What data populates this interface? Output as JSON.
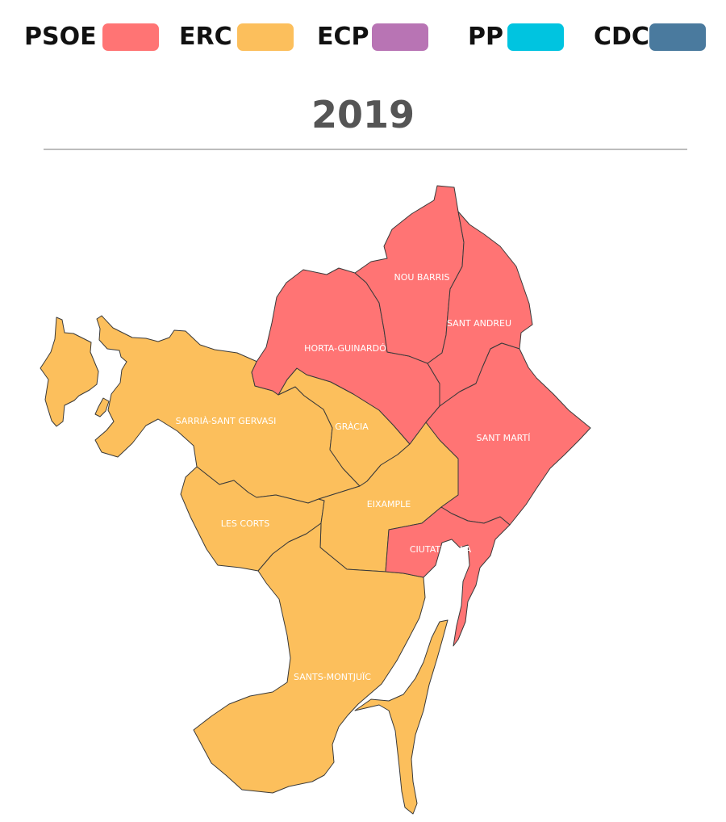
{
  "legend": [
    {
      "party": "PSOE",
      "color": "#FF7474"
    },
    {
      "party": "ERC",
      "color": "#FCBF5C"
    },
    {
      "party": "ECP",
      "color": "#B874B4"
    },
    {
      "party": "PP",
      "color": "#00C4E0"
    },
    {
      "party": "CDC",
      "color": "#4A7A9E"
    }
  ],
  "year": "2019",
  "districts": [
    {
      "id": "sarria",
      "name": "SARRIÀ-SANT GERVASI",
      "winner": "ERC"
    },
    {
      "id": "gracia",
      "name": "GRÀCIA",
      "winner": "ERC"
    },
    {
      "id": "lescorts",
      "name": "LES CORTS",
      "winner": "ERC"
    },
    {
      "id": "eixample",
      "name": "EIXAMPLE",
      "winner": "ERC"
    },
    {
      "id": "sants",
      "name": "SANTS-MONTJUÏC",
      "winner": "ERC"
    },
    {
      "id": "horta",
      "name": "HORTA-GUINARDÓ",
      "winner": "PSOE"
    },
    {
      "id": "noubarris",
      "name": "NOU BARRIS",
      "winner": "PSOE"
    },
    {
      "id": "santandreu",
      "name": "SANT ANDREU",
      "winner": "PSOE"
    },
    {
      "id": "santmarti",
      "name": "SANT MARTÍ",
      "winner": "PSOE"
    },
    {
      "id": "ciutatvella",
      "name": "CIUTAT VELLA",
      "winner": "PSOE"
    }
  ]
}
